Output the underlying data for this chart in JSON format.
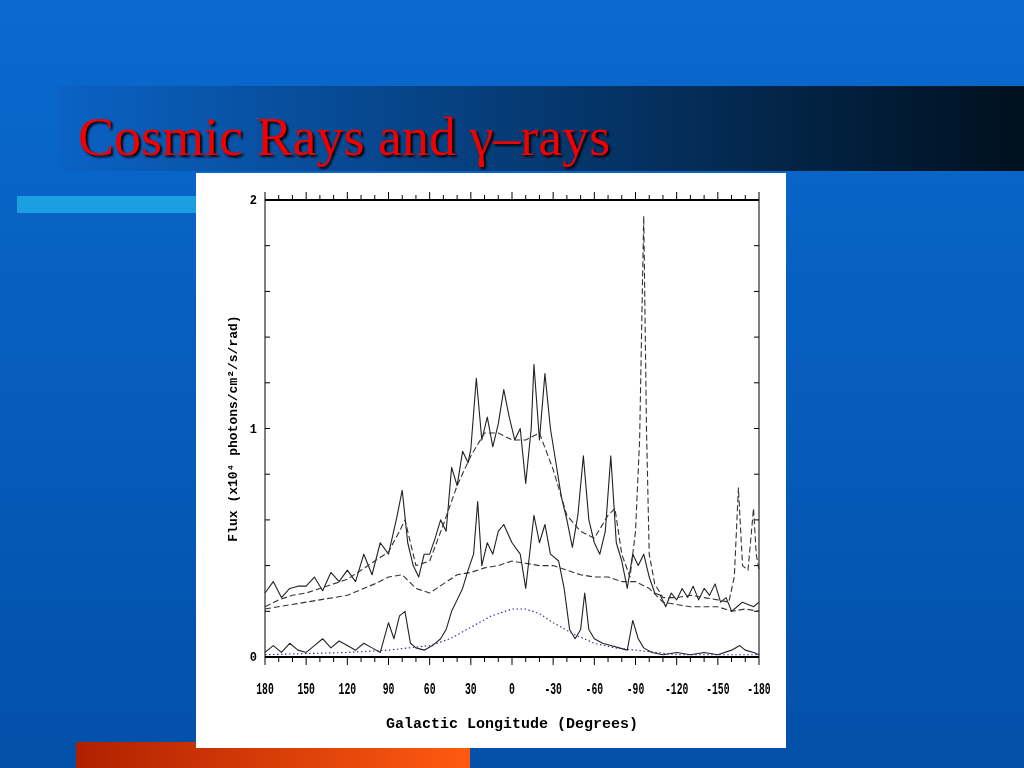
{
  "chart_data": {
    "type": "line",
    "title": "Cosmic Rays and γ–rays",
    "xlabel": "Galactic Longitude (Degrees)",
    "ylabel": "Flux (x10⁴ photons/cm²/s/rad)",
    "xlim": [
      180,
      -180
    ],
    "xticks": [
      180,
      {
        "value": 170,
        "label": null
      },
      {
        "value": 160,
        "label": null
      },
      150,
      {
        "value": 140,
        "label": null
      },
      {
        "value": 130,
        "label": null
      },
      120,
      {
        "value": 110,
        "label": null
      },
      {
        "value": 100,
        "label": null
      },
      90,
      {
        "value": 80,
        "label": null
      },
      {
        "value": 70,
        "label": null
      },
      60,
      {
        "value": 50,
        "label": null
      },
      {
        "value": 40,
        "label": null
      },
      30,
      {
        "value": 20,
        "label": null
      },
      {
        "value": 10,
        "label": null
      },
      0,
      {
        "value": -10,
        "label": null
      },
      {
        "value": -20,
        "label": null
      },
      -30,
      {
        "value": -40,
        "label": null
      },
      {
        "value": -50,
        "label": null
      },
      -60,
      {
        "value": -70,
        "label": null
      },
      {
        "value": -80,
        "label": null
      },
      -90,
      {
        "value": -100,
        "label": null
      },
      {
        "value": -110,
        "label": null
      },
      -120,
      {
        "value": -130,
        "label": null
      },
      {
        "value": -140,
        "label": null
      },
      -150,
      {
        "value": -160,
        "label": null
      },
      {
        "value": -170,
        "label": null
      },
      -180
    ],
    "ylim": [
      0,
      2
    ],
    "yticks": [
      0,
      {
        "value": 0.2,
        "label": null
      },
      {
        "value": 0.4,
        "label": null
      },
      {
        "value": 0.6,
        "label": null
      },
      {
        "value": 0.8,
        "label": null
      },
      1,
      {
        "value": 1.2,
        "label": null
      },
      {
        "value": 1.4,
        "label": null
      },
      {
        "value": 1.6,
        "label": null
      },
      {
        "value": 1.8,
        "label": null
      },
      2
    ],
    "grid": false,
    "marker": "none",
    "series": [
      {
        "color": "#222222",
        "line_style": "solid",
        "x": [
          180,
          174,
          168,
          162,
          156,
          150,
          144,
          138,
          132,
          126,
          120,
          114,
          108,
          102,
          96,
          90,
          84,
          80,
          76,
          72,
          68,
          64,
          60,
          56,
          52,
          48,
          44,
          40,
          36,
          32,
          30,
          26,
          22,
          18,
          14,
          10,
          6,
          2,
          -2,
          -6,
          -10,
          -14,
          -16,
          -20,
          -24,
          -28,
          -32,
          -36,
          -40,
          -44,
          -48,
          -52,
          -56,
          -60,
          -64,
          -68,
          -72,
          -76,
          -80,
          -84,
          -88,
          -92,
          -96,
          -100,
          -104,
          -108,
          -112,
          -116,
          -120,
          -124,
          -128,
          -132,
          -136,
          -140,
          -144,
          -148,
          -152,
          -156,
          -160,
          -164,
          -168,
          -172,
          -176,
          -180
        ],
        "values": [
          0.28,
          0.33,
          0.26,
          0.3,
          0.31,
          0.31,
          0.35,
          0.29,
          0.37,
          0.33,
          0.38,
          0.33,
          0.45,
          0.36,
          0.5,
          0.45,
          0.61,
          0.73,
          0.5,
          0.4,
          0.35,
          0.45,
          0.45,
          0.52,
          0.6,
          0.55,
          0.83,
          0.75,
          0.9,
          0.85,
          0.91,
          1.22,
          0.95,
          1.05,
          0.92,
          1.02,
          1.17,
          1.05,
          0.95,
          1.0,
          0.76,
          1.0,
          1.28,
          0.95,
          1.24,
          1.0,
          0.85,
          0.7,
          0.6,
          0.48,
          0.62,
          0.88,
          0.6,
          0.5,
          0.45,
          0.55,
          0.88,
          0.5,
          0.42,
          0.3,
          0.45,
          0.4,
          0.45,
          0.35,
          0.28,
          0.27,
          0.22,
          0.28,
          0.25,
          0.3,
          0.26,
          0.31,
          0.25,
          0.3,
          0.27,
          0.32,
          0.24,
          0.26,
          0.2,
          0.22,
          0.24,
          0.23,
          0.22,
          0.24
        ]
      },
      {
        "color": "#333333",
        "line_style": "dashed",
        "x": [
          180,
          170,
          160,
          150,
          140,
          130,
          120,
          110,
          100,
          90,
          82,
          78,
          70,
          60,
          50,
          40,
          30,
          20,
          10,
          0,
          -10,
          -20,
          -30,
          -40,
          -50,
          -60,
          -70,
          -75,
          -80,
          -86,
          -90,
          -93,
          -96,
          -98,
          -100,
          -104,
          -110,
          -120,
          -130,
          -140,
          -150,
          -158,
          -162,
          -165,
          -168,
          -172,
          -176,
          -178,
          -180
        ],
        "values": [
          0.22,
          0.25,
          0.27,
          0.28,
          0.3,
          0.32,
          0.34,
          0.38,
          0.42,
          0.46,
          0.55,
          0.6,
          0.4,
          0.42,
          0.58,
          0.75,
          0.88,
          0.98,
          0.98,
          0.95,
          0.95,
          0.98,
          0.82,
          0.62,
          0.55,
          0.52,
          0.62,
          0.65,
          0.45,
          0.35,
          0.55,
          0.95,
          1.93,
          1.0,
          0.45,
          0.32,
          0.26,
          0.26,
          0.27,
          0.26,
          0.25,
          0.24,
          0.35,
          0.74,
          0.4,
          0.38,
          0.65,
          0.45,
          0.38
        ]
      },
      {
        "color": "#333333",
        "line_style": "dashed",
        "x": [
          180,
          150,
          120,
          100,
          90,
          80,
          70,
          60,
          50,
          40,
          30,
          20,
          10,
          0,
          -10,
          -20,
          -30,
          -40,
          -50,
          -60,
          -70,
          -80,
          -90,
          -100,
          -110,
          -120,
          -130,
          -140,
          -150,
          -160,
          -170,
          -180
        ],
        "values": [
          0.21,
          0.24,
          0.27,
          0.32,
          0.35,
          0.36,
          0.3,
          0.28,
          0.32,
          0.36,
          0.37,
          0.39,
          0.4,
          0.42,
          0.41,
          0.4,
          0.4,
          0.38,
          0.36,
          0.35,
          0.35,
          0.33,
          0.33,
          0.3,
          0.24,
          0.23,
          0.22,
          0.22,
          0.22,
          0.2,
          0.21,
          0.2
        ]
      },
      {
        "color": "#222222",
        "line_style": "solid",
        "x": [
          180,
          174,
          168,
          162,
          156,
          150,
          144,
          138,
          132,
          126,
          120,
          114,
          108,
          102,
          96,
          90,
          86,
          82,
          78,
          74,
          70,
          64,
          58,
          52,
          48,
          44,
          40,
          36,
          32,
          28,
          25,
          22,
          18,
          14,
          10,
          6,
          0,
          -6,
          -10,
          -16,
          -20,
          -24,
          -28,
          -34,
          -38,
          -42,
          -46,
          -50,
          -53,
          -56,
          -60,
          -66,
          -72,
          -78,
          -84,
          -88,
          -92,
          -96,
          -102,
          -110,
          -120,
          -130,
          -140,
          -150,
          -160,
          -166,
          -170,
          -176,
          -180
        ],
        "values": [
          0.02,
          0.05,
          0.02,
          0.06,
          0.03,
          0.02,
          0.05,
          0.08,
          0.04,
          0.07,
          0.05,
          0.03,
          0.06,
          0.04,
          0.02,
          0.15,
          0.08,
          0.18,
          0.2,
          0.06,
          0.04,
          0.03,
          0.05,
          0.08,
          0.12,
          0.2,
          0.25,
          0.3,
          0.38,
          0.45,
          0.68,
          0.4,
          0.5,
          0.45,
          0.55,
          0.58,
          0.5,
          0.45,
          0.3,
          0.62,
          0.5,
          0.58,
          0.45,
          0.42,
          0.3,
          0.12,
          0.08,
          0.12,
          0.28,
          0.12,
          0.08,
          0.06,
          0.05,
          0.04,
          0.03,
          0.16,
          0.08,
          0.04,
          0.02,
          0.01,
          0.02,
          0.01,
          0.02,
          0.01,
          0.03,
          0.05,
          0.03,
          0.02,
          0.01
        ]
      },
      {
        "color": "#2a2aa0",
        "line_style": "dotted",
        "x": [
          180,
          120,
          90,
          60,
          45,
          30,
          15,
          0,
          -10,
          -20,
          -30,
          -45,
          -60,
          -75,
          -90,
          -120,
          -180
        ],
        "values": [
          0.01,
          0.02,
          0.03,
          0.05,
          0.08,
          0.13,
          0.18,
          0.21,
          0.21,
          0.19,
          0.15,
          0.1,
          0.06,
          0.04,
          0.03,
          0.01,
          0.01
        ]
      }
    ]
  }
}
